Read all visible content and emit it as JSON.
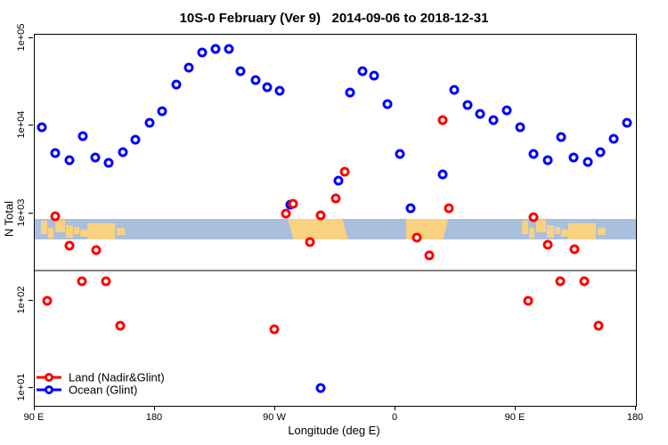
{
  "title": "10S-0 February (Ver 9)   2014-09-06 to 2018-12-31",
  "chart_data": {
    "type": "scatter",
    "title": "10S-0 February (Ver 9)   2014-09-06 to 2018-12-31",
    "xlabel": "Longitude (deg E)",
    "ylabel": "N Total",
    "grid": "off",
    "legend_position": "bottom-left-inside",
    "x_axis": {
      "min": 90,
      "max": 540,
      "ticks": [
        {
          "lon": 90,
          "label": "90 E"
        },
        {
          "lon": 180,
          "label": "180"
        },
        {
          "lon": 270,
          "label": "90 W"
        },
        {
          "lon": 360,
          "label": "0"
        },
        {
          "lon": 450,
          "label": "90 E"
        },
        {
          "lon": 540,
          "label": "180"
        }
      ]
    },
    "y_axis": {
      "scale": "log10",
      "min": 6,
      "max": 110000,
      "ticks": [
        {
          "log": 1,
          "label": "1e+01"
        },
        {
          "log": 2,
          "label": "1e+02"
        },
        {
          "log": 3,
          "label": "1e+03"
        },
        {
          "log": 4,
          "label": "1e+04"
        },
        {
          "log": 5,
          "label": "1e+05"
        }
      ]
    },
    "reference_line": {
      "n_value": 220,
      "color": "#808080"
    },
    "map_band": {
      "ocean_color": "#a9bfde",
      "land_color": "#f8d280",
      "n_top": 860,
      "n_bottom": 500,
      "land_patches": [
        {
          "x0": 94.5,
          "x1": 99.5,
          "t": 0.1,
          "b": 0.75
        },
        {
          "x0": 100,
          "x1": 104,
          "t": 0.45,
          "b": 0.95
        },
        {
          "x0": 105,
          "x1": 112.5,
          "t": 0.05,
          "b": 0.65
        },
        {
          "x0": 113.5,
          "x1": 118.5,
          "t": 0.3,
          "b": 0.92
        },
        {
          "x0": 119,
          "x1": 123,
          "t": 0.38,
          "b": 0.72
        },
        {
          "x0": 124,
          "x1": 129,
          "t": 0.5,
          "b": 0.85
        },
        {
          "x0": 129.5,
          "x1": 150,
          "t": 0.2,
          "b": 1.0
        },
        {
          "x0": 151,
          "x1": 157,
          "t": 0.42,
          "b": 0.78
        },
        {
          "x0": 279.5,
          "x1": 324.5,
          "t": 0,
          "b": 1,
          "shape": "slant-right"
        },
        {
          "x0": 368,
          "x1": 399.5,
          "t": 0,
          "b": 1,
          "shape": "taper-right"
        },
        {
          "x0": 454.5,
          "x1": 459.5,
          "t": 0.1,
          "b": 0.75
        },
        {
          "x0": 460,
          "x1": 464,
          "t": 0.45,
          "b": 0.95
        },
        {
          "x0": 465,
          "x1": 472.5,
          "t": 0.05,
          "b": 0.65
        },
        {
          "x0": 473.5,
          "x1": 478.5,
          "t": 0.3,
          "b": 0.92
        },
        {
          "x0": 479,
          "x1": 483,
          "t": 0.38,
          "b": 0.72
        },
        {
          "x0": 484,
          "x1": 489,
          "t": 0.5,
          "b": 0.85
        },
        {
          "x0": 489.5,
          "x1": 510,
          "t": 0.2,
          "b": 1.0
        },
        {
          "x0": 511,
          "x1": 517,
          "t": 0.42,
          "b": 0.78
        }
      ]
    },
    "series": [
      {
        "name": "Land (Nadir&Glint)",
        "color": "#ff0000",
        "points": [
          [
            99,
            99
          ],
          [
            105,
            920
          ],
          [
            116,
            425
          ],
          [
            125,
            166
          ],
          [
            136,
            378
          ],
          [
            143,
            166
          ],
          [
            154,
            51
          ],
          [
            269,
            47
          ],
          [
            278,
            990
          ],
          [
            283,
            1280
          ],
          [
            296,
            467
          ],
          [
            304,
            944
          ],
          [
            315,
            1470
          ],
          [
            322,
            3000
          ],
          [
            376,
            525
          ],
          [
            385,
            329
          ],
          [
            395,
            11600
          ],
          [
            400,
            1140
          ],
          [
            459,
            99
          ],
          [
            463,
            900
          ],
          [
            474,
            435
          ],
          [
            483,
            166
          ],
          [
            494,
            387
          ],
          [
            501,
            166
          ],
          [
            512,
            52
          ]
        ]
      },
      {
        "name": "Ocean (Glint)",
        "color": "#0000ff",
        "points": [
          [
            95,
            9600
          ],
          [
            105,
            4900
          ],
          [
            116,
            4000
          ],
          [
            126,
            7600
          ],
          [
            135,
            4300
          ],
          [
            145,
            3800
          ],
          [
            156,
            5000
          ],
          [
            165,
            6900
          ],
          [
            176,
            10800
          ],
          [
            185,
            14600
          ],
          [
            196,
            29500
          ],
          [
            205,
            46000
          ],
          [
            215,
            69000
          ],
          [
            225,
            75500
          ],
          [
            235,
            75500
          ],
          [
            244,
            42000
          ],
          [
            255,
            33000
          ],
          [
            264,
            27500
          ],
          [
            273,
            25000
          ],
          [
            281,
            1250
          ],
          [
            304,
            10
          ],
          [
            317,
            2370
          ],
          [
            326,
            24000
          ],
          [
            335,
            42000
          ],
          [
            344,
            37000
          ],
          [
            354,
            17700
          ],
          [
            363,
            4750
          ],
          [
            371,
            1150
          ],
          [
            395,
            2770
          ],
          [
            404,
            25600
          ],
          [
            414,
            17200
          ],
          [
            423,
            13600
          ],
          [
            433,
            11600
          ],
          [
            443,
            15000
          ],
          [
            453,
            9600
          ],
          [
            463,
            4750
          ],
          [
            474,
            4000
          ],
          [
            484,
            7400
          ],
          [
            493,
            4300
          ],
          [
            504,
            3850
          ],
          [
            513,
            5000
          ],
          [
            523,
            7100
          ],
          [
            533,
            10800
          ]
        ]
      }
    ]
  }
}
